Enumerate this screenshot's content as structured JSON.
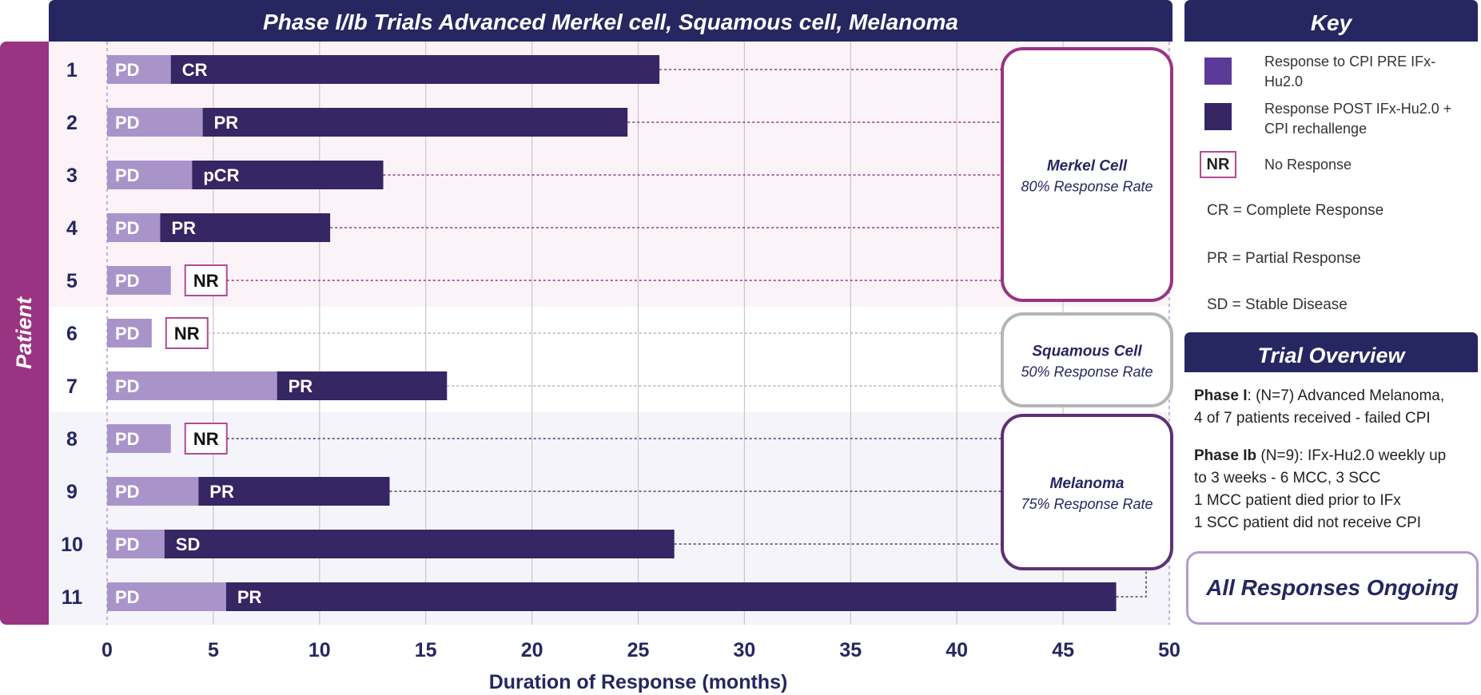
{
  "chart_data": {
    "type": "bar",
    "orientation": "horizontal-stacked",
    "title": "Phase I/Ib Trials Advanced Merkel cell, Squamous cell, Melanoma",
    "xlabel": "Duration of Response (months)",
    "ylabel": "Patient",
    "xlim": [
      0,
      50
    ],
    "xticks": [
      "0",
      "5",
      "10",
      "15",
      "20",
      "25",
      "30",
      "35",
      "40",
      "45",
      "50"
    ],
    "categories": [
      "1",
      "2",
      "3",
      "4",
      "5",
      "6",
      "7",
      "8",
      "9",
      "10",
      "11"
    ],
    "series": [
      {
        "name": "Response to CPI PRE IFx-Hu2.0",
        "label": "PD",
        "color": "#a994ca",
        "values": [
          3.0,
          4.5,
          4.0,
          2.5,
          3.0,
          2.1,
          8.0,
          3.0,
          4.3,
          2.7,
          5.6
        ]
      },
      {
        "name": "Response POST IFx-Hu2.0 + CPI rechallenge",
        "color": "#362664",
        "labels": [
          "CR",
          "PR",
          "pCR",
          "PR",
          "NR",
          "NR",
          "PR",
          "NR",
          "PR",
          "SD",
          "PR"
        ],
        "values": [
          23.0,
          20.0,
          9.0,
          8.0,
          0,
          0,
          8.0,
          0,
          9.0,
          24.0,
          41.9
        ]
      }
    ],
    "groups": [
      {
        "name": "Merkel Cell",
        "rate": "80% Response Rate",
        "patients": [
          "1",
          "2",
          "3",
          "4",
          "5"
        ],
        "border": "#993483",
        "band": "#fbf3f8"
      },
      {
        "name": "Squamous Cell",
        "rate": "50% Response Rate",
        "patients": [
          "6",
          "7"
        ],
        "border": "#b5b5b5",
        "band": "#ffffff"
      },
      {
        "name": "Melanoma",
        "rate": "75% Response Rate",
        "patients": [
          "8",
          "9",
          "10",
          "11"
        ],
        "border": "#5e3076",
        "band": "#f4f4fa"
      }
    ]
  },
  "key": {
    "title": "Key",
    "items": [
      {
        "text": "Response to CPI PRE IFx-Hu2.0",
        "color": "#5b3a9a"
      },
      {
        "text": "Response POST IFx-Hu2.0 + CPI rechallenge",
        "color": "#362664"
      }
    ],
    "nr_label": "NR",
    "nr_text": "No Response",
    "definitions": [
      "CR = Complete Response",
      "PR = Partial Response",
      "SD = Stable Disease"
    ]
  },
  "overview": {
    "title": "Trial Overview",
    "phase1_label": "Phase I",
    "phase1_text": ": (N=7)   Advanced Melanoma,",
    "phase1_line2": "4 of 7 patients received - failed CPI",
    "phase1b_label": "Phase Ib",
    "phase1b_text": " (N=9):  IFx-Hu2.0 weekly up",
    "phase1b_lines": [
      "to 3 weeks - 6 MCC, 3 SCC",
      "1 MCC patient died prior to IFx",
      "1 SCC patient did not receive CPI"
    ]
  },
  "ongoing": "All Responses Ongoing"
}
